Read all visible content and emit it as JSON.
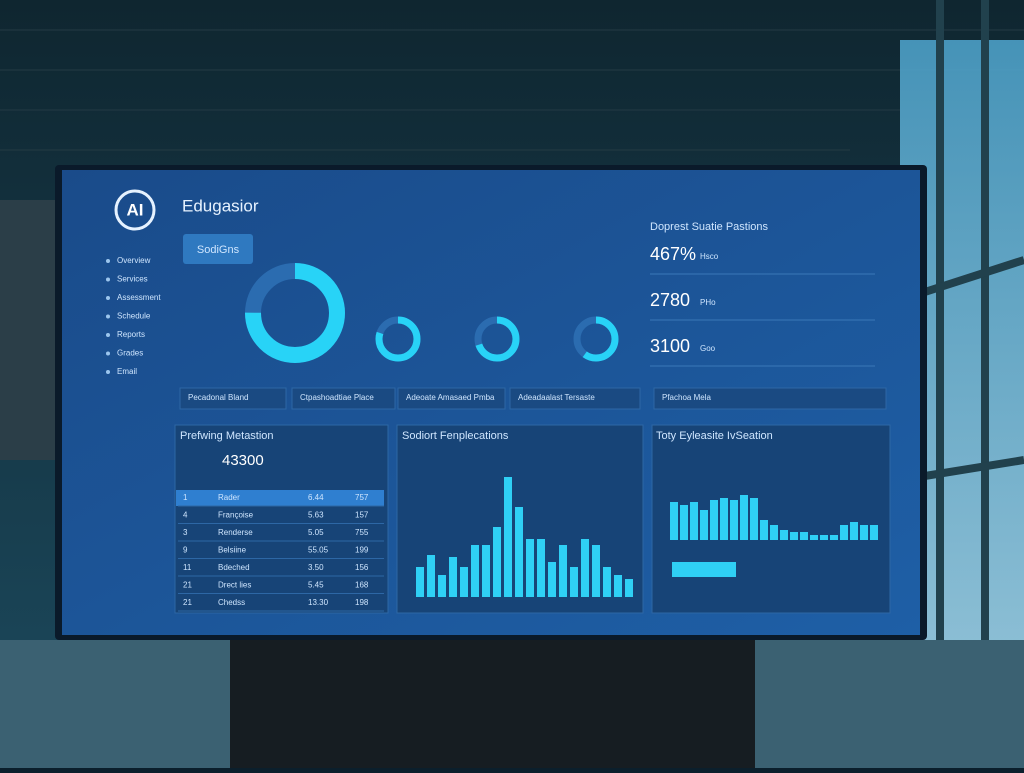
{
  "logo": "AI",
  "title": "Edugasior",
  "button": "SodiGns",
  "menu": [
    "Overview",
    "Services",
    "Assessment",
    "Schedule",
    "Reports",
    "Grades",
    "Email"
  ],
  "donuts": [
    75,
    80,
    70,
    60
  ],
  "tabs": [
    "Pecadonal Bland",
    "Ctpashoadtiae Place",
    "Adeoate Amasaed Pmba",
    "Adeadaalast Tersaste",
    "Pfachoa Mela"
  ],
  "stats": {
    "title": "Doprest Suatie Pastions",
    "items": [
      {
        "value": "467%",
        "unit": "Hsco"
      },
      {
        "value": "2780",
        "unit": "PHo"
      },
      {
        "value": "3100",
        "unit": "Goo"
      }
    ]
  },
  "table": {
    "title": "Prefwing Metastion",
    "total": "43300",
    "rows": [
      [
        "1",
        "Rader",
        "6.44",
        "757"
      ],
      [
        "4",
        "Françoise",
        "5.63",
        "157"
      ],
      [
        "3",
        "Renderse",
        "5.05",
        "755"
      ],
      [
        "9",
        "Belsiine",
        "55.05",
        "199"
      ],
      [
        "11",
        "Bdeched",
        "3.50",
        "156"
      ],
      [
        "21",
        "Drect lies",
        "5.45",
        "168"
      ],
      [
        "21",
        "Chedss",
        "13.30",
        "198"
      ]
    ]
  },
  "bars1": {
    "title": "Sodiort Fenplecations",
    "values": [
      30,
      42,
      22,
      40,
      30,
      52,
      52,
      70,
      120,
      90,
      58,
      58,
      35,
      52,
      30,
      58,
      52,
      30,
      22,
      18
    ]
  },
  "bars2": {
    "title": "Toty Eyleasite IvSeation",
    "values": [
      38,
      35,
      38,
      30,
      40,
      42,
      40,
      45,
      42,
      20,
      15,
      10,
      8,
      8,
      5,
      5,
      5,
      15,
      18,
      15,
      15
    ]
  }
}
